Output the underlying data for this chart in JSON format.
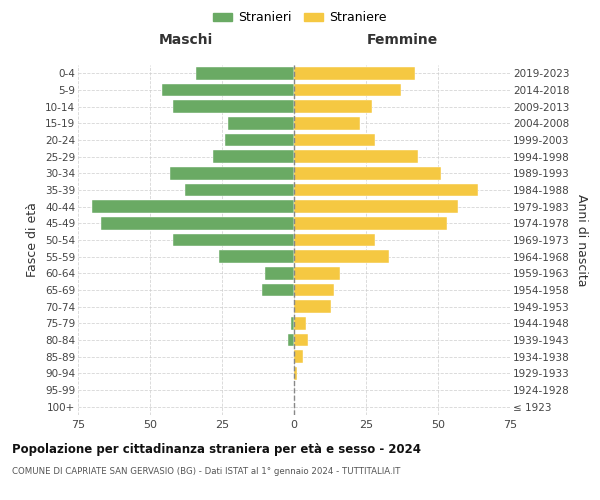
{
  "age_groups": [
    "100+",
    "95-99",
    "90-94",
    "85-89",
    "80-84",
    "75-79",
    "70-74",
    "65-69",
    "60-64",
    "55-59",
    "50-54",
    "45-49",
    "40-44",
    "35-39",
    "30-34",
    "25-29",
    "20-24",
    "15-19",
    "10-14",
    "5-9",
    "0-4"
  ],
  "birth_years": [
    "≤ 1923",
    "1924-1928",
    "1929-1933",
    "1934-1938",
    "1939-1943",
    "1944-1948",
    "1949-1953",
    "1954-1958",
    "1959-1963",
    "1964-1968",
    "1969-1973",
    "1974-1978",
    "1979-1983",
    "1984-1988",
    "1989-1993",
    "1994-1998",
    "1999-2003",
    "2004-2008",
    "2009-2013",
    "2014-2018",
    "2019-2023"
  ],
  "males": [
    0,
    0,
    0,
    0,
    2,
    1,
    0,
    11,
    10,
    26,
    42,
    67,
    70,
    38,
    43,
    28,
    24,
    23,
    42,
    46,
    34
  ],
  "females": [
    0,
    0,
    1,
    3,
    5,
    4,
    13,
    14,
    16,
    33,
    28,
    53,
    57,
    64,
    51,
    43,
    28,
    23,
    27,
    37,
    42
  ],
  "male_color": "#6aaa64",
  "female_color": "#f5c842",
  "background_color": "#ffffff",
  "grid_color": "#cccccc",
  "title": "Popolazione per cittadinanza straniera per età e sesso - 2024",
  "subtitle": "COMUNE DI CAPRIATE SAN GERVASIO (BG) - Dati ISTAT al 1° gennaio 2024 - TUTTITALIA.IT",
  "left_label": "Maschi",
  "right_label": "Femmine",
  "ylabel_left": "Fasce di età",
  "ylabel_right": "Anni di nascita",
  "legend_male": "Stranieri",
  "legend_female": "Straniere",
  "xlim": 75
}
